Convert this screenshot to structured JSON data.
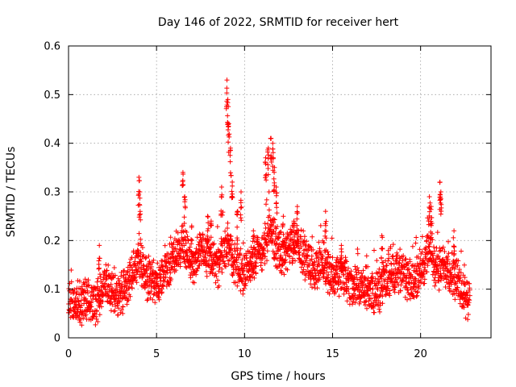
{
  "chart_data": {
    "type": "scatter",
    "title": "Day 146 of 2022, SRMTID for receiver hert",
    "xlabel": "GPS time / hours",
    "ylabel": "SRMTID / TECUs",
    "xlim": [
      0,
      24
    ],
    "ylim": [
      0,
      0.6
    ],
    "xticks": [
      0,
      5,
      10,
      15,
      20
    ],
    "xtick_labels": [
      "0",
      "5",
      "10",
      "15",
      "20"
    ],
    "yticks": [
      0,
      0.1,
      0.2,
      0.3,
      0.4,
      0.5,
      0.6
    ],
    "ytick_labels": [
      "0",
      "0.1",
      "0.2",
      "0.3",
      "0.4",
      "0.5",
      "0.6"
    ],
    "grid": true,
    "marker": "+",
    "colors": {
      "points": "#ff0000",
      "axes": "#000000",
      "grid": "#a0a0a0"
    },
    "series": [
      {
        "name": "SRMTID",
        "anchors": [
          [
            0.0,
            0.08
          ],
          [
            0.5,
            0.07
          ],
          [
            1.0,
            0.08
          ],
          [
            1.5,
            0.06
          ],
          [
            2.0,
            0.11
          ],
          [
            2.5,
            0.1
          ],
          [
            3.0,
            0.09
          ],
          [
            3.5,
            0.12
          ],
          [
            4.0,
            0.17
          ],
          [
            4.5,
            0.12
          ],
          [
            5.0,
            0.11
          ],
          [
            5.5,
            0.13
          ],
          [
            6.0,
            0.17
          ],
          [
            6.5,
            0.2
          ],
          [
            7.0,
            0.15
          ],
          [
            7.5,
            0.17
          ],
          [
            8.0,
            0.17
          ],
          [
            8.5,
            0.14
          ],
          [
            9.0,
            0.2
          ],
          [
            9.5,
            0.15
          ],
          [
            10.0,
            0.13
          ],
          [
            10.5,
            0.16
          ],
          [
            11.0,
            0.18
          ],
          [
            11.5,
            0.22
          ],
          [
            12.0,
            0.17
          ],
          [
            12.5,
            0.18
          ],
          [
            13.0,
            0.2
          ],
          [
            13.5,
            0.16
          ],
          [
            14.0,
            0.14
          ],
          [
            14.5,
            0.16
          ],
          [
            15.0,
            0.12
          ],
          [
            15.5,
            0.13
          ],
          [
            16.0,
            0.11
          ],
          [
            16.5,
            0.1
          ],
          [
            17.0,
            0.1
          ],
          [
            17.5,
            0.09
          ],
          [
            18.0,
            0.12
          ],
          [
            18.5,
            0.14
          ],
          [
            19.0,
            0.13
          ],
          [
            19.5,
            0.11
          ],
          [
            20.0,
            0.14
          ],
          [
            20.5,
            0.18
          ],
          [
            21.0,
            0.14
          ],
          [
            21.5,
            0.15
          ],
          [
            22.0,
            0.12
          ],
          [
            22.5,
            0.09
          ],
          [
            22.8,
            0.08
          ]
        ],
        "spikes": [
          [
            1.75,
            0.19
          ],
          [
            4.0,
            0.33
          ],
          [
            4.05,
            0.3
          ],
          [
            6.5,
            0.34
          ],
          [
            6.6,
            0.29
          ],
          [
            7.0,
            0.23
          ],
          [
            7.9,
            0.25
          ],
          [
            8.1,
            0.24
          ],
          [
            8.7,
            0.31
          ],
          [
            9.0,
            0.53
          ],
          [
            9.05,
            0.49
          ],
          [
            9.1,
            0.44
          ],
          [
            9.2,
            0.39
          ],
          [
            9.3,
            0.32
          ],
          [
            9.6,
            0.26
          ],
          [
            9.8,
            0.3
          ],
          [
            10.5,
            0.22
          ],
          [
            11.2,
            0.37
          ],
          [
            11.35,
            0.39
          ],
          [
            11.5,
            0.41
          ],
          [
            11.6,
            0.4
          ],
          [
            11.7,
            0.35
          ],
          [
            11.8,
            0.31
          ],
          [
            12.2,
            0.25
          ],
          [
            12.8,
            0.24
          ],
          [
            13.0,
            0.27
          ],
          [
            14.6,
            0.26
          ],
          [
            15.5,
            0.19
          ],
          [
            17.8,
            0.21
          ],
          [
            20.5,
            0.29
          ],
          [
            20.6,
            0.27
          ],
          [
            21.1,
            0.32
          ],
          [
            21.15,
            0.3
          ],
          [
            21.9,
            0.22
          ]
        ]
      }
    ]
  }
}
